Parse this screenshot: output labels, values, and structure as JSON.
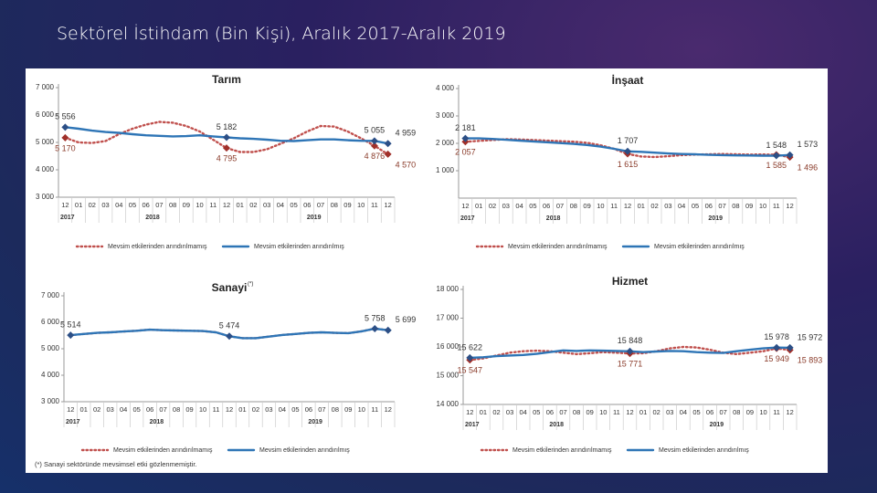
{
  "title": "Sektörel İstihdam (Bin Kişi), Aralık 2017-Aralık 2019",
  "footnote": "(*) Sanayi sektöründe mevsimsel etki gözlenmemiştir.",
  "chart_data": [
    {
      "type": "line",
      "title": "Tarım",
      "categories": [
        "12",
        "01",
        "02",
        "03",
        "04",
        "05",
        "06",
        "07",
        "08",
        "09",
        "10",
        "11",
        "12",
        "01",
        "02",
        "03",
        "04",
        "05",
        "06",
        "07",
        "08",
        "09",
        "10",
        "11",
        "12"
      ],
      "years": [
        "2017",
        "2018",
        "2019"
      ],
      "ylim": [
        3000,
        7000
      ],
      "yticks": [
        {
          "value": 3000,
          "label": "3 000"
        },
        {
          "value": 4000,
          "label": "4 000"
        },
        {
          "value": 5000,
          "label": "5 000"
        },
        {
          "value": 6000,
          "label": "6 000"
        },
        {
          "value": 7000,
          "label": "7 000"
        }
      ],
      "series": [
        {
          "name": "Mevsim etkilerinden arındırılmamış",
          "color": "#c0504d",
          "style": "dotted",
          "values": [
            5170,
            5000,
            4980,
            5050,
            5300,
            5500,
            5650,
            5750,
            5720,
            5600,
            5400,
            5100,
            4795,
            4650,
            4650,
            4750,
            4950,
            5150,
            5400,
            5600,
            5580,
            5400,
            5150,
            4876,
            4570
          ],
          "value_labels": [
            "5 170",
            null,
            null,
            null,
            null,
            null,
            null,
            null,
            null,
            null,
            null,
            null,
            "4 795",
            null,
            null,
            null,
            null,
            null,
            null,
            null,
            null,
            null,
            null,
            "4 876",
            "4 570"
          ]
        },
        {
          "name": "Mevsim etkilerinden arındırılmış",
          "color": "#2e75b6",
          "style": "solid",
          "values": [
            5556,
            5500,
            5430,
            5380,
            5350,
            5300,
            5260,
            5240,
            5220,
            5230,
            5260,
            5220,
            5182,
            5150,
            5130,
            5100,
            5060,
            5050,
            5080,
            5110,
            5110,
            5080,
            5060,
            5055,
            4959
          ],
          "value_labels": [
            "5 556",
            null,
            null,
            null,
            null,
            null,
            null,
            null,
            null,
            null,
            null,
            null,
            "5 182",
            null,
            null,
            null,
            null,
            null,
            null,
            null,
            null,
            null,
            null,
            "5 055",
            "4 959"
          ]
        }
      ]
    },
    {
      "type": "line",
      "title": "İnşaat",
      "categories": [
        "12",
        "01",
        "02",
        "03",
        "04",
        "05",
        "06",
        "07",
        "08",
        "09",
        "10",
        "11",
        "12",
        "01",
        "02",
        "03",
        "04",
        "05",
        "06",
        "07",
        "08",
        "09",
        "10",
        "11",
        "12"
      ],
      "years": [
        "2017",
        "2018",
        "2019"
      ],
      "ylim": [
        0,
        4000
      ],
      "yticks": [
        {
          "value": 1000,
          "label": "1 000"
        },
        {
          "value": 2000,
          "label": "2 000"
        },
        {
          "value": 3000,
          "label": "3 000"
        },
        {
          "value": 4000,
          "label": "4 000"
        }
      ],
      "series": [
        {
          "name": "Mevsim etkilerinden arındırılmamış",
          "color": "#c0504d",
          "style": "dotted",
          "values": [
            2057,
            2090,
            2120,
            2150,
            2140,
            2120,
            2100,
            2080,
            2060,
            2020,
            1930,
            1800,
            1615,
            1520,
            1500,
            1530,
            1570,
            1590,
            1600,
            1610,
            1600,
            1590,
            1595,
            1585,
            1496
          ],
          "value_labels": [
            "2 057",
            null,
            null,
            null,
            null,
            null,
            null,
            null,
            null,
            null,
            null,
            null,
            "1 615",
            null,
            null,
            null,
            null,
            null,
            null,
            null,
            null,
            null,
            null,
            "1 585",
            "1 496"
          ]
        },
        {
          "name": "Mevsim etkilerinden arındırılmış",
          "color": "#2e75b6",
          "style": "solid",
          "values": [
            2181,
            2180,
            2160,
            2130,
            2100,
            2070,
            2040,
            2010,
            1980,
            1940,
            1880,
            1800,
            1707,
            1690,
            1660,
            1630,
            1610,
            1600,
            1580,
            1570,
            1560,
            1555,
            1550,
            1548,
            1573
          ],
          "value_labels": [
            "2 181",
            null,
            null,
            null,
            null,
            null,
            null,
            null,
            null,
            null,
            null,
            null,
            "1 707",
            null,
            null,
            null,
            null,
            null,
            null,
            null,
            null,
            null,
            null,
            "1 548",
            "1 573"
          ]
        }
      ]
    },
    {
      "type": "line",
      "title": "Sanayi",
      "title_note": "(*)",
      "categories": [
        "12",
        "01",
        "02",
        "03",
        "04",
        "05",
        "06",
        "07",
        "08",
        "09",
        "10",
        "11",
        "12",
        "01",
        "02",
        "03",
        "04",
        "05",
        "06",
        "07",
        "08",
        "09",
        "10",
        "11",
        "12"
      ],
      "years": [
        "2017",
        "2018",
        "2019"
      ],
      "ylim": [
        3000,
        7000
      ],
      "yticks": [
        {
          "value": 3000,
          "label": "3 000"
        },
        {
          "value": 4000,
          "label": "4 000"
        },
        {
          "value": 5000,
          "label": "5 000"
        },
        {
          "value": 6000,
          "label": "6 000"
        },
        {
          "value": 7000,
          "label": "7 000"
        }
      ],
      "series": [
        {
          "name": "Mevsim etkilerinden arındırılmamış",
          "color": "#c0504d",
          "style": "dotted",
          "values": [
            5514,
            5560,
            5600,
            5620,
            5650,
            5680,
            5720,
            5700,
            5690,
            5680,
            5670,
            5620,
            5474,
            5400,
            5400,
            5460,
            5520,
            5560,
            5600,
            5620,
            5600,
            5590,
            5660,
            5758,
            5699
          ]
        },
        {
          "name": "Mevsim etkilerinden arındırılmış",
          "color": "#2e75b6",
          "style": "solid",
          "values": [
            5514,
            5560,
            5600,
            5620,
            5650,
            5680,
            5720,
            5700,
            5690,
            5680,
            5670,
            5620,
            5474,
            5400,
            5400,
            5460,
            5520,
            5560,
            5600,
            5620,
            5600,
            5590,
            5660,
            5758,
            5699
          ],
          "value_labels": [
            "5 514",
            null,
            null,
            null,
            null,
            null,
            null,
            null,
            null,
            null,
            null,
            null,
            "5 474",
            null,
            null,
            null,
            null,
            null,
            null,
            null,
            null,
            null,
            null,
            "5 758",
            "5 699"
          ]
        }
      ]
    },
    {
      "type": "line",
      "title": "Hizmet",
      "categories": [
        "12",
        "01",
        "02",
        "03",
        "04",
        "05",
        "06",
        "07",
        "08",
        "09",
        "10",
        "11",
        "12",
        "01",
        "02",
        "03",
        "04",
        "05",
        "06",
        "07",
        "08",
        "09",
        "10",
        "11",
        "12"
      ],
      "years": [
        "2017",
        "2018",
        "2019"
      ],
      "ylim": [
        14000,
        18000
      ],
      "yticks": [
        {
          "value": 14000,
          "label": "14 000"
        },
        {
          "value": 15000,
          "label": "15 000"
        },
        {
          "value": 16000,
          "label": "16 000"
        },
        {
          "value": 17000,
          "label": "17 000"
        },
        {
          "value": 18000,
          "label": "18 000"
        }
      ],
      "series": [
        {
          "name": "Mevsim etkilerinden arındırılmamış",
          "color": "#c0504d",
          "style": "dotted",
          "values": [
            15547,
            15600,
            15700,
            15800,
            15850,
            15870,
            15850,
            15800,
            15750,
            15780,
            15820,
            15800,
            15771,
            15780,
            15850,
            15950,
            16000,
            15980,
            15900,
            15800,
            15750,
            15800,
            15850,
            15949,
            15893
          ],
          "value_labels": [
            "15 547",
            null,
            null,
            null,
            null,
            null,
            null,
            null,
            null,
            null,
            null,
            null,
            "15 771",
            null,
            null,
            null,
            null,
            null,
            null,
            null,
            null,
            null,
            null,
            "15 949",
            "15 893"
          ]
        },
        {
          "name": "Mevsim etkilerinden arındırılmış",
          "color": "#2e75b6",
          "style": "solid",
          "values": [
            15622,
            15640,
            15680,
            15700,
            15720,
            15760,
            15820,
            15880,
            15860,
            15880,
            15870,
            15860,
            15848,
            15820,
            15840,
            15860,
            15850,
            15820,
            15800,
            15790,
            15850,
            15900,
            15950,
            15978,
            15972
          ],
          "value_labels": [
            "15 622",
            null,
            null,
            null,
            null,
            null,
            null,
            null,
            null,
            null,
            null,
            null,
            "15 848",
            null,
            null,
            null,
            null,
            null,
            null,
            null,
            null,
            null,
            null,
            "15 978",
            "15 972"
          ]
        }
      ]
    }
  ]
}
